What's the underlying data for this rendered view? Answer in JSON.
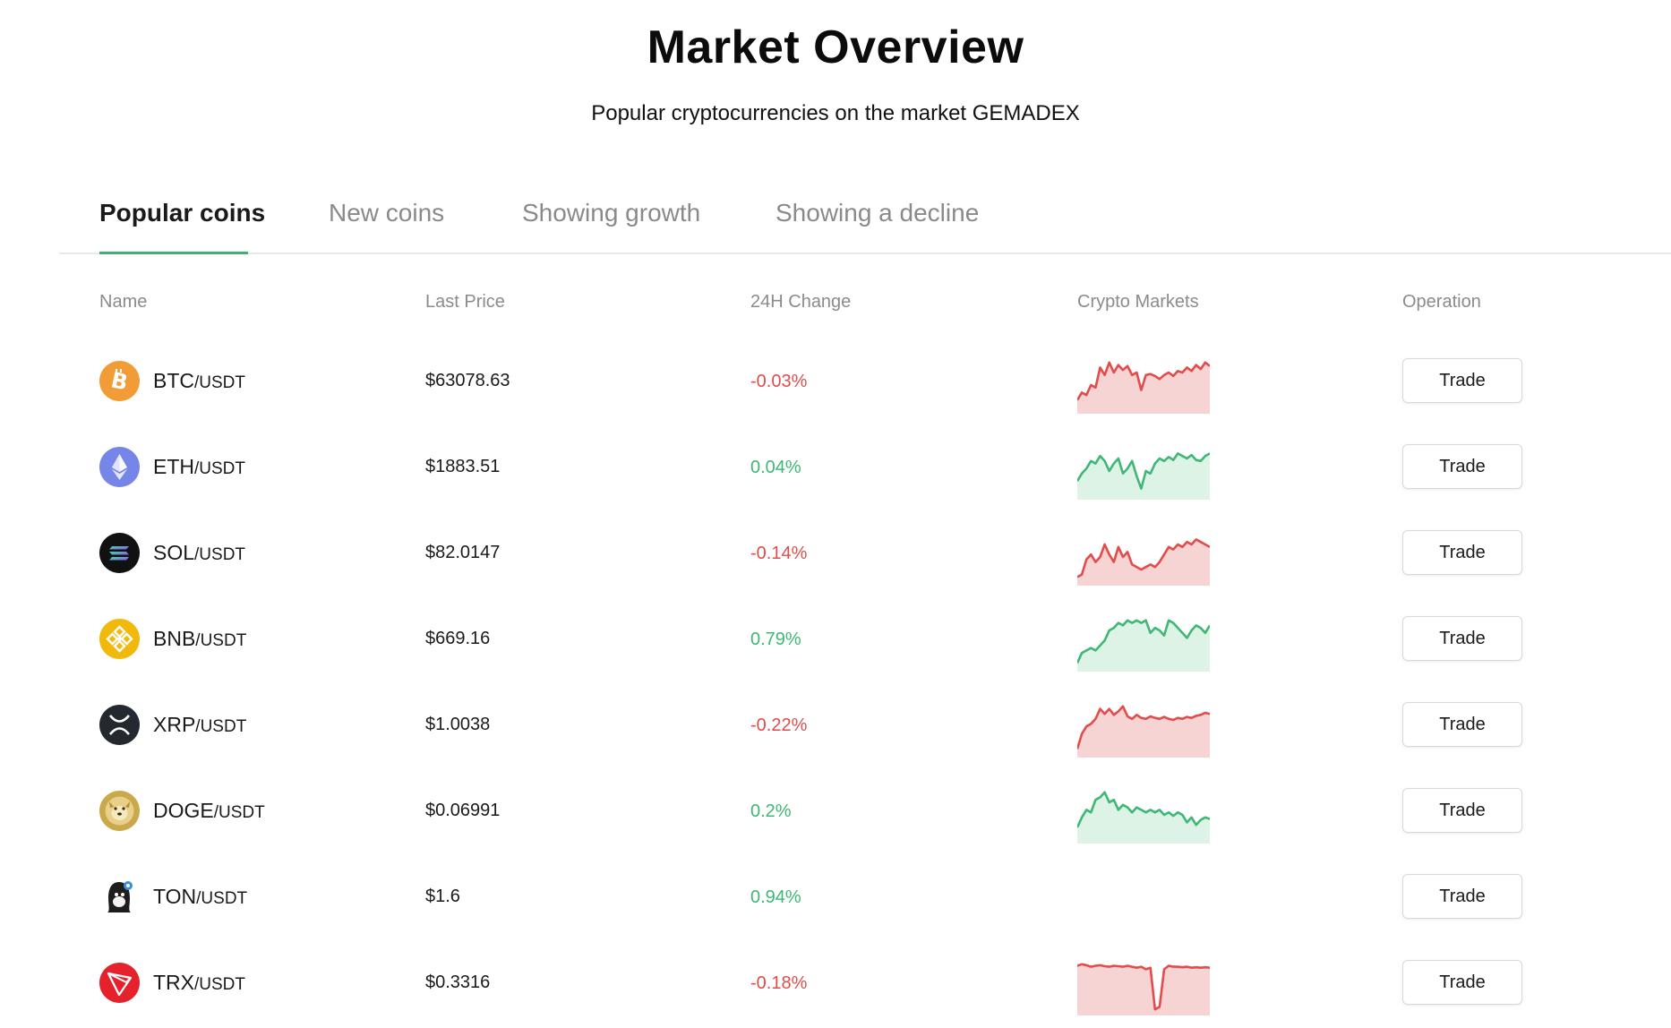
{
  "header": {
    "title": "Market Overview",
    "subtitle": "Popular cryptocurrencies on the market GEMADEX"
  },
  "tabs": [
    {
      "label": "Popular coins",
      "active": true
    },
    {
      "label": "New coins",
      "active": false
    },
    {
      "label": "Showing growth",
      "active": false
    },
    {
      "label": "Showing a decline",
      "active": false
    }
  ],
  "columns": {
    "name": "Name",
    "last_price": "Last Price",
    "change": "24H Change",
    "markets": "Crypto Markets",
    "operation": "Operation"
  },
  "colors": {
    "up": "#3fb776",
    "down": "#e24c4b",
    "up_fill": "#dcf3e6",
    "down_fill": "#f7d4d4",
    "accent": "#43b06f"
  },
  "rows": [
    {
      "base": "BTC",
      "quote": "/USDT",
      "price": "$63078.63",
      "change": "-0.03%",
      "direction": "down",
      "icon": "bitcoin-icon",
      "trade_label": "Trade",
      "sparkline": [
        0.2,
        0.35,
        0.3,
        0.5,
        0.45,
        0.85,
        0.7,
        0.95,
        0.75,
        0.9,
        0.8,
        0.88,
        0.7,
        0.75,
        0.4,
        0.7,
        0.72,
        0.68,
        0.62,
        0.7,
        0.75,
        0.68,
        0.78,
        0.75,
        0.85,
        0.78,
        0.9,
        0.82,
        0.95,
        0.88
      ]
    },
    {
      "base": "ETH",
      "quote": "/USDT",
      "price": "$1883.51",
      "change": "0.04%",
      "direction": "up",
      "icon": "ethereum-icon",
      "trade_label": "Trade",
      "sparkline": [
        0.3,
        0.45,
        0.55,
        0.7,
        0.65,
        0.8,
        0.7,
        0.5,
        0.65,
        0.75,
        0.45,
        0.55,
        0.7,
        0.4,
        0.15,
        0.5,
        0.45,
        0.65,
        0.75,
        0.7,
        0.78,
        0.72,
        0.85,
        0.8,
        0.75,
        0.82,
        0.72,
        0.7,
        0.8,
        0.85
      ]
    },
    {
      "base": "SOL",
      "quote": "/USDT",
      "price": "$82.0147",
      "change": "-0.14%",
      "direction": "down",
      "icon": "solana-icon",
      "trade_label": "Trade",
      "sparkline": [
        0.1,
        0.15,
        0.45,
        0.55,
        0.4,
        0.5,
        0.75,
        0.55,
        0.4,
        0.7,
        0.5,
        0.6,
        0.35,
        0.3,
        0.25,
        0.3,
        0.35,
        0.3,
        0.4,
        0.55,
        0.7,
        0.65,
        0.75,
        0.7,
        0.8,
        0.75,
        0.85,
        0.8,
        0.75,
        0.7
      ]
    },
    {
      "base": "BNB",
      "quote": "/USDT",
      "price": "$669.16",
      "change": "0.79%",
      "direction": "up",
      "icon": "bnb-icon",
      "trade_label": "Trade",
      "sparkline": [
        0.1,
        0.3,
        0.35,
        0.4,
        0.35,
        0.45,
        0.55,
        0.75,
        0.8,
        0.9,
        0.85,
        0.95,
        0.9,
        0.95,
        0.9,
        0.95,
        0.7,
        0.8,
        0.75,
        0.65,
        0.95,
        0.9,
        0.8,
        0.7,
        0.6,
        0.75,
        0.85,
        0.8,
        0.7,
        0.85
      ]
    },
    {
      "base": "XRP",
      "quote": "/USDT",
      "price": "$1.0038",
      "change": "-0.22%",
      "direction": "down",
      "icon": "xrp-icon",
      "trade_label": "Trade",
      "sparkline": [
        0.1,
        0.4,
        0.55,
        0.6,
        0.7,
        0.9,
        0.8,
        0.9,
        0.78,
        0.85,
        0.95,
        0.75,
        0.7,
        0.78,
        0.72,
        0.7,
        0.75,
        0.72,
        0.7,
        0.74,
        0.7,
        0.68,
        0.72,
        0.7,
        0.74,
        0.72,
        0.76,
        0.78,
        0.82,
        0.8
      ]
    },
    {
      "base": "DOGE",
      "quote": "/USDT",
      "price": "$0.06991",
      "change": "0.2%",
      "direction": "up",
      "icon": "dogecoin-icon",
      "trade_label": "Trade",
      "sparkline": [
        0.25,
        0.45,
        0.6,
        0.55,
        0.8,
        0.85,
        0.95,
        0.75,
        0.8,
        0.6,
        0.7,
        0.65,
        0.55,
        0.65,
        0.6,
        0.55,
        0.6,
        0.55,
        0.6,
        0.5,
        0.55,
        0.48,
        0.55,
        0.5,
        0.35,
        0.45,
        0.3,
        0.4,
        0.45,
        0.42
      ]
    },
    {
      "base": "TON",
      "quote": "/USDT",
      "price": "$1.6",
      "change": "0.94%",
      "direction": "up",
      "icon": "ton-icon",
      "trade_label": "Trade",
      "sparkline": []
    },
    {
      "base": "TRX",
      "quote": "/USDT",
      "price": "$0.3316",
      "change": "-0.18%",
      "direction": "down",
      "icon": "tron-icon",
      "trade_label": "Trade",
      "sparkline": [
        0.92,
        0.95,
        0.93,
        0.9,
        0.92,
        0.93,
        0.91,
        0.9,
        0.92,
        0.91,
        0.9,
        0.92,
        0.9,
        0.88,
        0.9,
        0.85,
        0.88,
        0.05,
        0.1,
        0.85,
        0.92,
        0.9,
        0.9,
        0.89,
        0.9,
        0.88,
        0.89,
        0.88,
        0.89,
        0.88
      ]
    }
  ]
}
